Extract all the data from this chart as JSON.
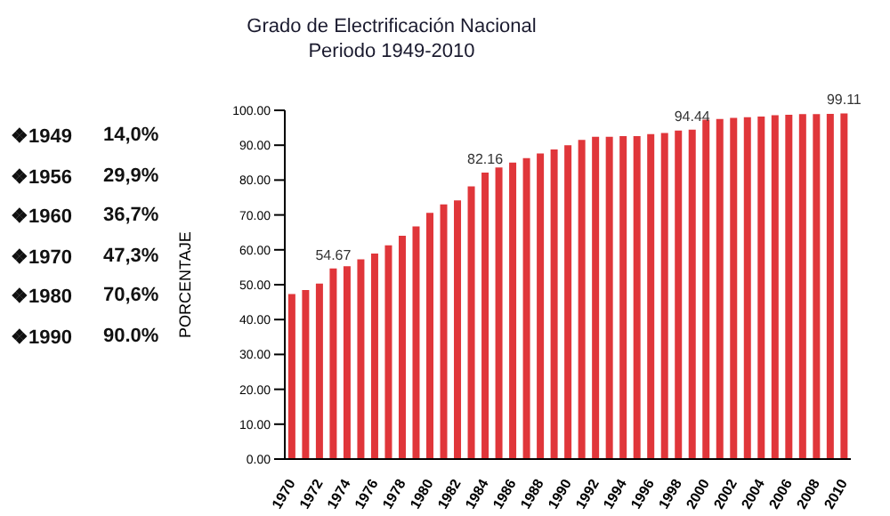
{
  "chart_data": {
    "type": "bar",
    "title": "Grado de Electrificación Nacional",
    "subtitle": "Periodo 1949-2010",
    "ylabel": "PORCENTAJE",
    "annotations": [
      "❖1949 14,0%",
      "❖1956 29,9%",
      "❖1960 36,7%",
      "❖1970 47,3%",
      "❖1980 70,6%",
      "❖1990 90.0%"
    ],
    "categories": [
      "1970",
      null,
      "1972",
      null,
      "1974",
      null,
      "1976",
      null,
      "1978",
      null,
      "1980",
      null,
      "1982",
      null,
      "1984",
      null,
      "1986",
      null,
      "1988",
      null,
      "1990",
      null,
      "1992",
      null,
      "1994",
      null,
      "1996",
      null,
      "1998",
      null,
      "2000",
      null,
      "2002",
      null,
      "2004",
      null,
      "2006",
      null,
      "2008",
      null,
      "2010"
    ],
    "values": [
      47.3,
      48.5,
      50.3,
      54.67,
      55.3,
      57.3,
      58.9,
      61.3,
      64.0,
      66.7,
      70.6,
      73.0,
      74.2,
      78.2,
      82.16,
      83.6,
      85.0,
      86.3,
      87.6,
      88.8,
      90.0,
      91.5,
      92.4,
      92.4,
      92.6,
      92.6,
      93.2,
      93.5,
      94.2,
      94.44,
      97.3,
      97.5,
      97.8,
      98.0,
      98.2,
      98.6,
      98.7,
      98.9,
      98.9,
      99.0,
      99.11
    ],
    "value_labels": [
      null,
      null,
      null,
      "54.67",
      null,
      null,
      null,
      null,
      null,
      null,
      null,
      null,
      null,
      null,
      "82.16",
      null,
      null,
      null,
      null,
      null,
      null,
      null,
      null,
      null,
      null,
      null,
      null,
      null,
      null,
      "94.44",
      null,
      null,
      null,
      null,
      null,
      null,
      null,
      null,
      null,
      null,
      "99.11"
    ],
    "color": "#e0363a",
    "ylim": [
      0,
      100
    ],
    "yticks": [
      {
        "value": 0,
        "label": "0.00"
      },
      {
        "value": 10,
        "label": "10.00"
      },
      {
        "value": 20,
        "label": "20.00"
      },
      {
        "value": 30,
        "label": "30.00"
      },
      {
        "value": 40,
        "label": "40.00"
      },
      {
        "value": 50,
        "label": "50.00"
      },
      {
        "value": 60,
        "label": "60.00"
      },
      {
        "value": 70,
        "label": "70.00"
      },
      {
        "value": 80,
        "label": "80.00"
      },
      {
        "value": 90,
        "label": "90.00"
      },
      {
        "value": 100,
        "label": "100.00"
      }
    ],
    "grid": false,
    "legend": false
  }
}
